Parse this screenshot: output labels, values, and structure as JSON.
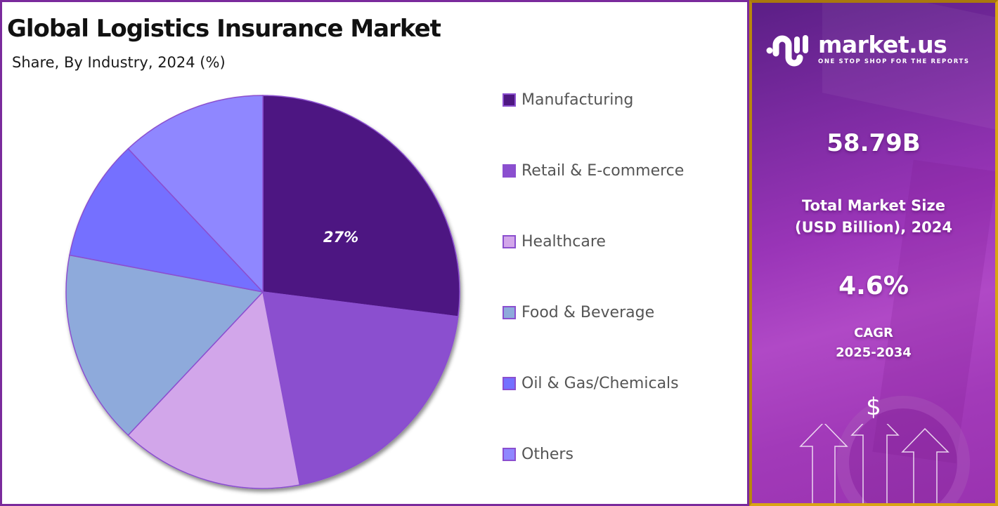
{
  "chart": {
    "title": "Global Logistics Insurance Market",
    "subtitle": "Share, By Industry, 2024 (%)",
    "highlight_label": "27%"
  },
  "legend": {
    "items": [
      {
        "label": "Manufacturing",
        "color": "#4e1782"
      },
      {
        "label": "Retail & E-commerce",
        "color": "#8b4fcf"
      },
      {
        "label": "Healthcare",
        "color": "#d2a6ea"
      },
      {
        "label": "Food & Beverage",
        "color": "#8eaadb"
      },
      {
        "label": "Oil & Gas/Chemicals",
        "color": "#7470ff"
      },
      {
        "label": "Others",
        "color": "#8f87ff"
      }
    ]
  },
  "info_panel": {
    "logo_name": "market.us",
    "logo_tagline": "ONE STOP SHOP FOR THE REPORTS",
    "market_size_value": "58.79B",
    "market_size_label_line1": "Total Market Size",
    "market_size_label_line2": "(USD Billion), 2024",
    "cagr_value": "4.6%",
    "cagr_label_line1": "CAGR",
    "cagr_label_line2": "2025-2034",
    "dollar_icon": "$"
  },
  "colors": {
    "chart_border": "#7a2a9c",
    "info_border": "#d9a514",
    "slice_stroke": "#8b4fcf"
  },
  "chart_data": {
    "type": "pie",
    "title": "Global Logistics Insurance Market",
    "subtitle": "Share, By Industry, 2024 (%)",
    "categories": [
      "Manufacturing",
      "Retail & E-commerce",
      "Healthcare",
      "Food & Beverage",
      "Oil & Gas/Chemicals",
      "Others"
    ],
    "values": [
      27,
      20,
      15,
      16,
      10,
      12
    ],
    "colors": [
      "#4e1782",
      "#8b4fcf",
      "#d2a6ea",
      "#8eaadb",
      "#7470ff",
      "#8f87ff"
    ],
    "data_labels": [
      {
        "category": "Manufacturing",
        "text": "27%"
      }
    ],
    "start_angle": "12 o'clock, clockwise",
    "legend_position": "right",
    "unit": "%"
  }
}
